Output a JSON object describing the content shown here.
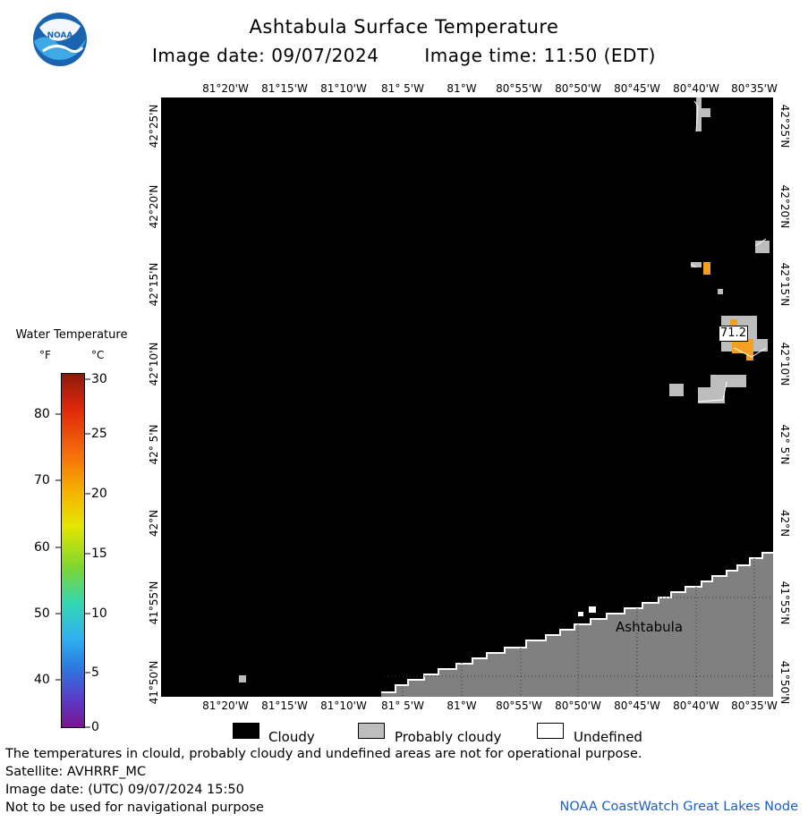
{
  "header": {
    "title": "Ashtabula Surface Temperature",
    "image_date": "Image date: 09/07/2024",
    "image_time": "Image time: 11:50 (EDT)",
    "logo_text": "NOAA"
  },
  "map": {
    "lon_labels": [
      "81°20'W",
      "81°15'W",
      "81°10'W",
      "81° 5'W",
      "81°W",
      "80°55'W",
      "80°50'W",
      "80°45'W",
      "80°40'W",
      "80°35'W"
    ],
    "lat_labels": [
      "42°25'N",
      "42°20'N",
      "42°15'N",
      "42°10'N",
      "42° 5'N",
      "42°N",
      "41°55'N",
      "41°50'N"
    ],
    "city_label": "Ashtabula",
    "temp_reading": "71.2",
    "colors": {
      "cloudy": "#000000",
      "probably_cloudy": "#bdbdbd",
      "land": "#808080",
      "warm_pixel": "#f5a020"
    }
  },
  "colorbar": {
    "title": "Water Temperature",
    "unit_f": "°F",
    "unit_c": "°C",
    "f_ticks": [
      "80",
      "70",
      "60",
      "50",
      "40"
    ],
    "c_ticks": [
      "30",
      "25",
      "20",
      "15",
      "10",
      "5",
      "0"
    ]
  },
  "legend": {
    "cloudy": "Cloudy",
    "probably_cloudy": "Probably cloudy",
    "undefined": "Undefined"
  },
  "footer": {
    "line1": "The temperatures in clould, probably cloudy and undefined areas are not for operational purpose.",
    "line2": "Satellite: AVHRRF_MC",
    "line3": "Image date: (UTC) 09/07/2024  15:50",
    "line4": "Not to be used for navigational purpose",
    "credit": "NOAA CoastWatch Great Lakes Node"
  }
}
